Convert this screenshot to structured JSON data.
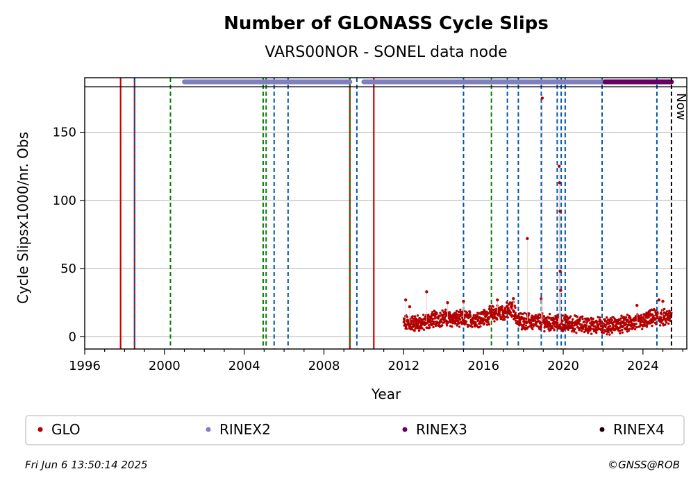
{
  "chart_data": {
    "type": "scatter",
    "title": "Number of GLONASS Cycle Slips",
    "subtitle": "VARS00NOR - SONEL data node",
    "xlabel": "Year",
    "ylabel": "Cycle Slipsx1000/nr. Obs",
    "xlim": [
      1996,
      2026.2
    ],
    "ylim": [
      -9,
      190
    ],
    "x_ticks": [
      "1996",
      "2000",
      "2004",
      "2008",
      "2012",
      "2016",
      "2020",
      "2024"
    ],
    "x_tick_values": [
      1996,
      2000,
      2004,
      2008,
      2012,
      2016,
      2020,
      2024
    ],
    "y_ticks": [
      "0",
      "50",
      "100",
      "150"
    ],
    "y_tick_values": [
      0,
      50,
      100,
      150
    ],
    "grid": "horizontal",
    "now_label": "Now",
    "now_x": 2025.43,
    "vertical_lines": {
      "red_solid": [
        1997.8,
        1998.5,
        2009.3,
        2010.5
      ],
      "blue_dashed": [
        1998.5,
        2005.5,
        2006.2,
        2009.65,
        2015.0,
        2017.2,
        2017.75,
        2018.9,
        2019.7,
        2019.9,
        2020.1,
        2021.95,
        2024.7
      ],
      "green_dashed": [
        2000.3,
        2004.95,
        2005.1,
        2009.3,
        2016.4
      ]
    },
    "rinex_bars": [
      {
        "name": "RINEX2",
        "color": "#8080c0",
        "start": 2001.0,
        "end": 2009.3
      },
      {
        "name": "RINEX2",
        "color": "#8080c0",
        "start": 2010.0,
        "end": 2022.1
      },
      {
        "name": "RINEX3",
        "color": "#660066",
        "start": 2022.1,
        "end": 2025.43
      }
    ],
    "glo_series": {
      "name": "GLO",
      "color": "#b30000",
      "x_start": 2012.0,
      "x_end": 2025.43,
      "trend": [
        [
          2012.0,
          10
        ],
        [
          2013.0,
          10
        ],
        [
          2013.5,
          13
        ],
        [
          2014.0,
          14
        ],
        [
          2014.5,
          13
        ],
        [
          2015.0,
          13
        ],
        [
          2015.5,
          13
        ],
        [
          2016.0,
          14
        ],
        [
          2016.5,
          17
        ],
        [
          2017.0,
          18
        ],
        [
          2017.5,
          20
        ],
        [
          2017.7,
          12
        ],
        [
          2018.5,
          11
        ],
        [
          2019.0,
          11
        ],
        [
          2019.5,
          10
        ],
        [
          2020.0,
          10
        ],
        [
          2021.0,
          9
        ],
        [
          2022.0,
          8
        ],
        [
          2023.0,
          9
        ],
        [
          2024.0,
          11
        ],
        [
          2024.5,
          14
        ],
        [
          2025.43,
          14
        ]
      ],
      "outliers": [
        [
          2012.1,
          27
        ],
        [
          2013.15,
          33
        ],
        [
          2012.3,
          22
        ],
        [
          2014.2,
          25
        ],
        [
          2015.0,
          26
        ],
        [
          2018.2,
          72
        ],
        [
          2018.9,
          28
        ],
        [
          2018.95,
          175
        ],
        [
          2019.8,
          125
        ],
        [
          2019.82,
          113
        ],
        [
          2019.84,
          92
        ],
        [
          2019.85,
          48
        ],
        [
          2019.87,
          34
        ],
        [
          2017.5,
          28
        ],
        [
          2023.7,
          23
        ],
        [
          2024.8,
          27
        ],
        [
          2025.0,
          26
        ],
        [
          2016.7,
          27
        ]
      ]
    },
    "legend": [
      {
        "label": "GLO",
        "color": "#b30000"
      },
      {
        "label": "RINEX2",
        "color": "#8080c0"
      },
      {
        "label": "RINEX3",
        "color": "#660066"
      },
      {
        "label": "RINEX4",
        "color": "#1a0010"
      }
    ],
    "legend_placement": "below"
  },
  "footer": {
    "timestamp": "Fri Jun  6 13:50:14 2025",
    "credit": "©GNSS@ROB"
  }
}
